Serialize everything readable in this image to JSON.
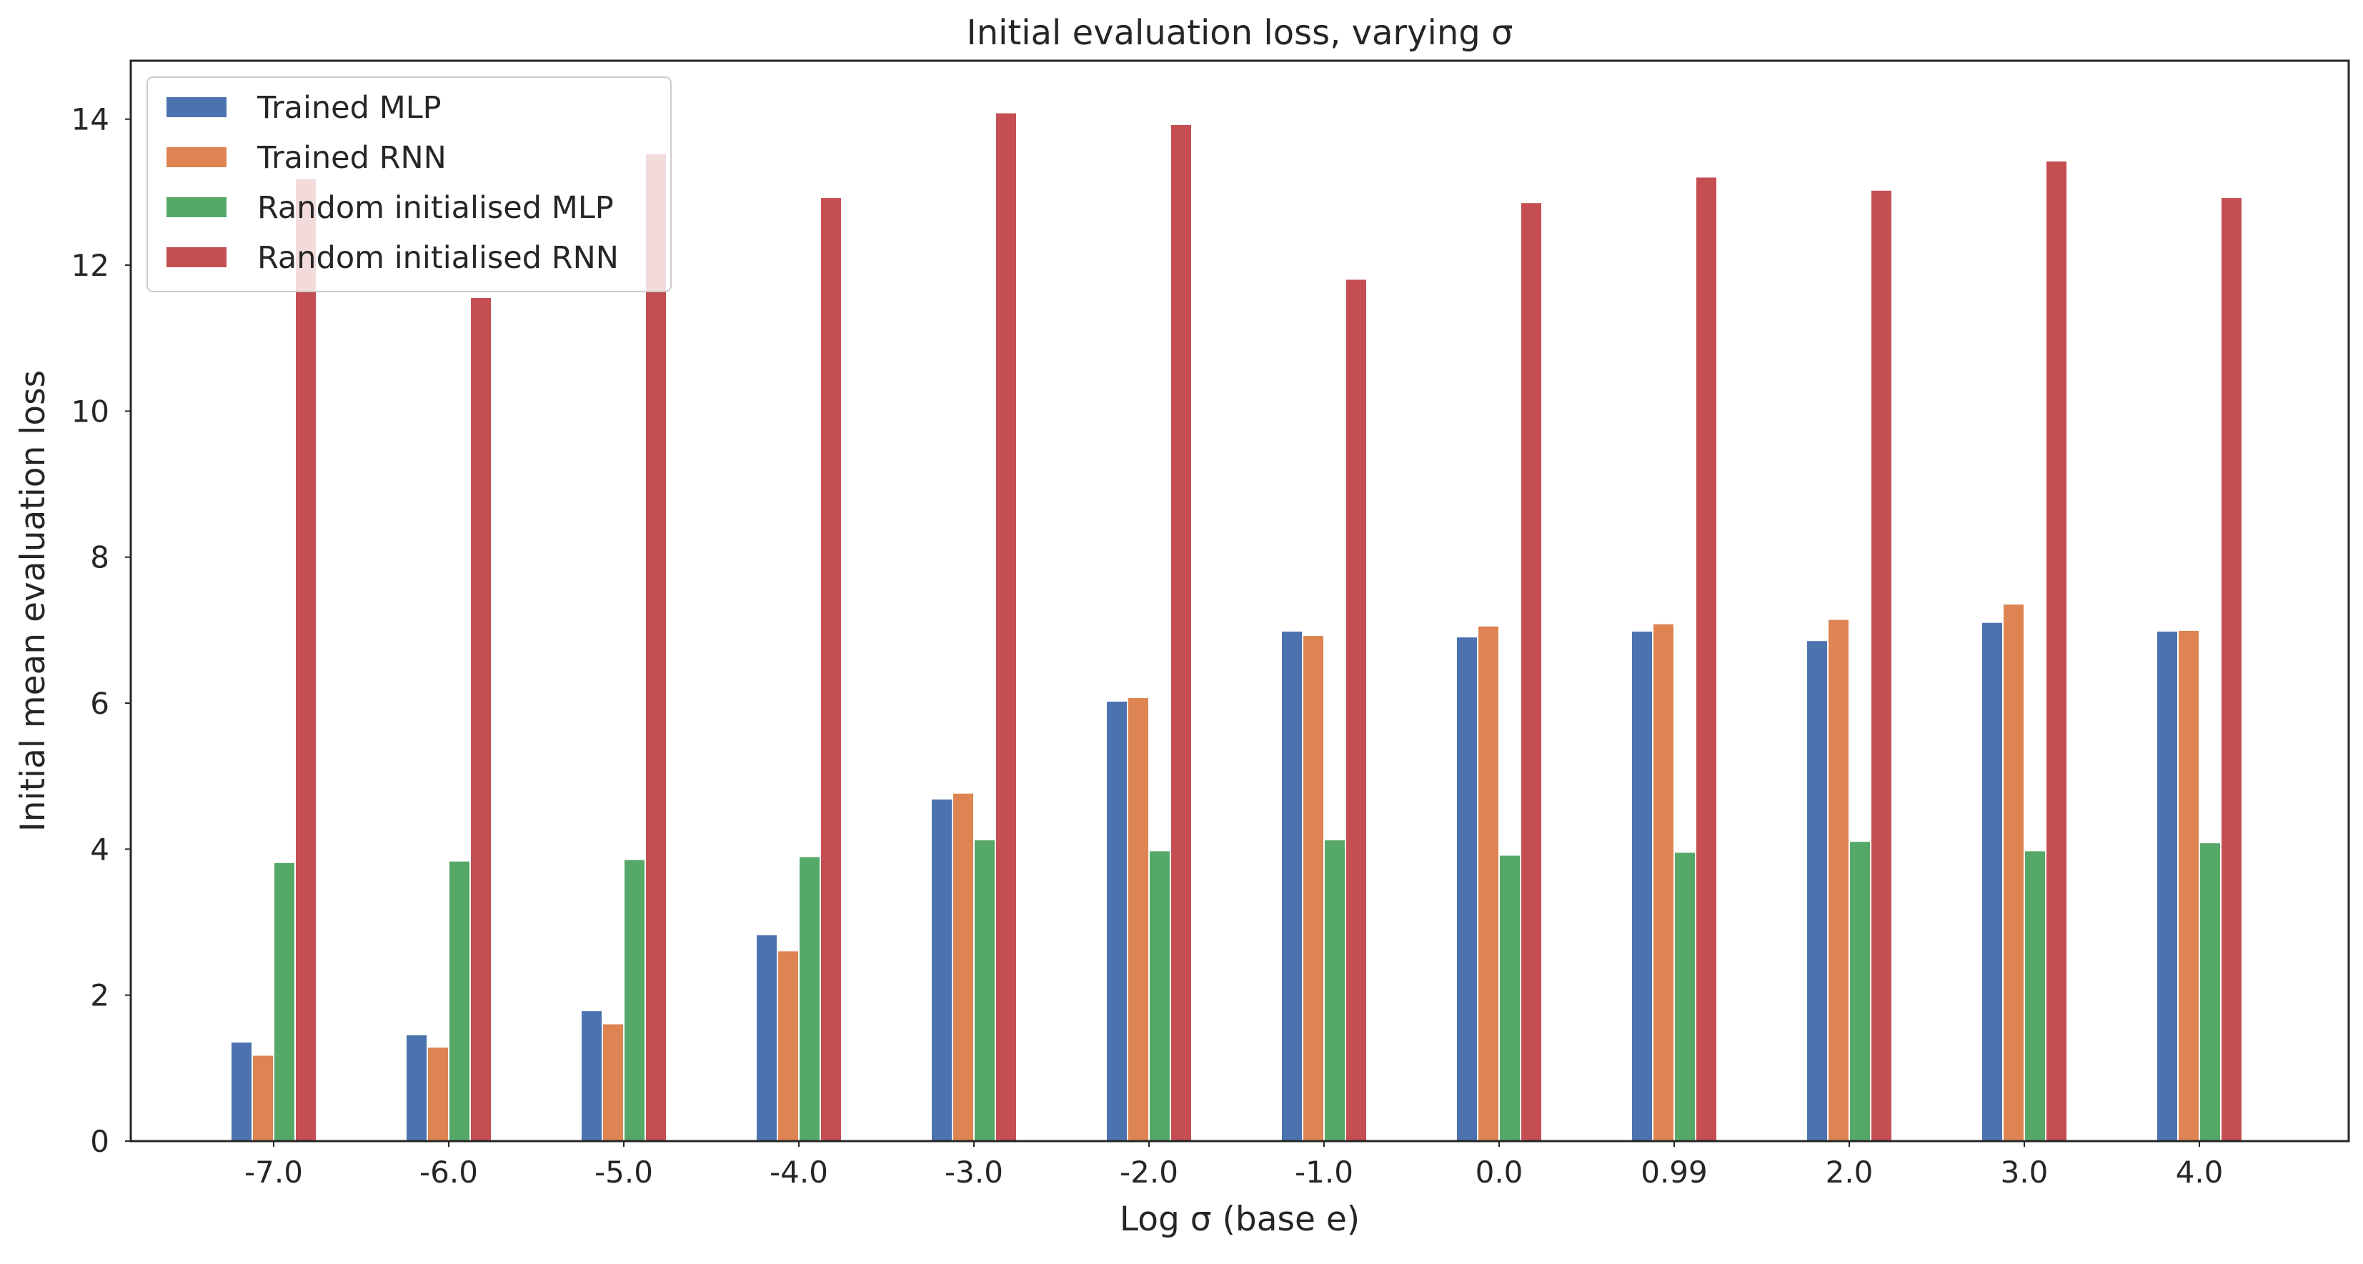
{
  "chart_data": {
    "type": "bar",
    "title": "Initial evaluation loss, varying σ",
    "xlabel": "Log σ (base e)",
    "ylabel": "Initial mean evaluation loss",
    "categories": [
      "-7.0",
      "-6.0",
      "-5.0",
      "-4.0",
      "-3.0",
      "-2.0",
      "-1.0",
      "0.0",
      "0.99",
      "2.0",
      "3.0",
      "4.0"
    ],
    "ylim": [
      0,
      14.8
    ],
    "yticks": [
      0,
      2,
      4,
      6,
      8,
      10,
      12,
      14
    ],
    "ytick_labels": [
      "0",
      "2",
      "4",
      "6",
      "8",
      "10",
      "12",
      "14"
    ],
    "grid": false,
    "legend_position": "top-left",
    "series": [
      {
        "name": "Trained MLP",
        "color": "#4c72b0",
        "values": [
          1.35,
          1.45,
          1.78,
          2.82,
          4.68,
          6.02,
          6.98,
          6.9,
          6.98,
          6.85,
          7.1,
          6.98
        ]
      },
      {
        "name": "Trained RNN",
        "color": "#dd8452",
        "values": [
          1.17,
          1.28,
          1.6,
          2.6,
          4.76,
          6.07,
          6.92,
          7.05,
          7.08,
          7.14,
          7.35,
          6.99
        ]
      },
      {
        "name": "Random initialised MLP",
        "color": "#55a868",
        "values": [
          3.81,
          3.83,
          3.85,
          3.89,
          4.12,
          3.97,
          4.12,
          3.91,
          3.95,
          4.1,
          3.97,
          4.08
        ]
      },
      {
        "name": "Random initialised RNN",
        "color": "#c44e52",
        "values": [
          13.18,
          11.55,
          13.52,
          12.92,
          14.08,
          13.92,
          11.8,
          12.85,
          13.2,
          13.02,
          13.42,
          12.92
        ]
      }
    ]
  }
}
